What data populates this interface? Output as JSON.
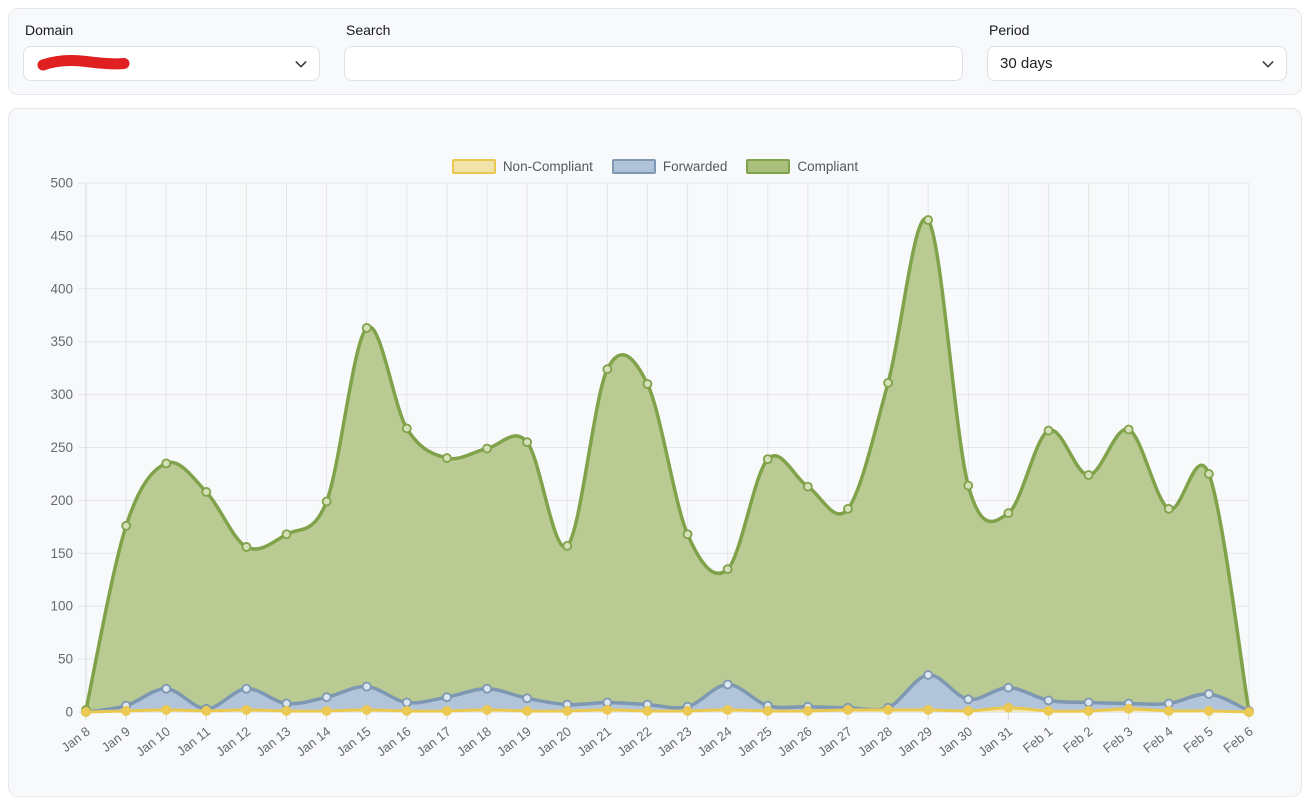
{
  "filters": {
    "domain": {
      "label": "Domain",
      "value": "",
      "redacted": true
    },
    "search": {
      "label": "Search",
      "value": "",
      "placeholder": ""
    },
    "period": {
      "label": "Period",
      "value": "30 days"
    }
  },
  "colors": {
    "redaction": "#e02020",
    "card_bg": "#f8f9fa",
    "grid": "#e4e6e9",
    "axis": "#d6d9dc",
    "tick_label": "#66696e"
  },
  "chart_data": {
    "type": "area",
    "title": "",
    "xlabel": "",
    "ylabel": "",
    "ylim": [
      0,
      500
    ],
    "ytick_step": 50,
    "grid": true,
    "legend_position": "top-center",
    "x": [
      "Jan 8",
      "Jan 9",
      "Jan 10",
      "Jan 11",
      "Jan 12",
      "Jan 13",
      "Jan 14",
      "Jan 15",
      "Jan 16",
      "Jan 17",
      "Jan 18",
      "Jan 19",
      "Jan 20",
      "Jan 21",
      "Jan 22",
      "Jan 23",
      "Jan 24",
      "Jan 25",
      "Jan 26",
      "Jan 27",
      "Jan 28",
      "Jan 29",
      "Jan 30",
      "Jan 31",
      "Feb 1",
      "Feb 2",
      "Feb 3",
      "Feb 4",
      "Feb 5",
      "Feb 6"
    ],
    "series": [
      {
        "name": "Non-Compliant",
        "line": "#e9c850",
        "fill": "#f4e8ba",
        "marker_fill": "#edca57",
        "swatch_fill": "#f2e3ab",
        "values": [
          0,
          1,
          2,
          1,
          2,
          1,
          1,
          2,
          1,
          1,
          2,
          1,
          1,
          2,
          1,
          1,
          2,
          1,
          1,
          2,
          2,
          2,
          1,
          4,
          1,
          1,
          3,
          1,
          1,
          0
        ]
      },
      {
        "name": "Forwarded",
        "line": "#7e97b2",
        "fill": "#b2c4da",
        "marker_fill": "#dde7f1",
        "swatch_fill": "#afc2d7",
        "values": [
          0,
          6,
          22,
          3,
          22,
          8,
          14,
          24,
          9,
          14,
          22,
          13,
          7,
          9,
          7,
          5,
          26,
          6,
          5,
          4,
          4,
          35,
          12,
          23,
          11,
          9,
          8,
          8,
          17,
          1
        ]
      },
      {
        "name": "Compliant",
        "line": "#7fa24a",
        "fill": "#b9cb92",
        "marker_fill": "#d5e0b8",
        "swatch_fill": "#aabf7c",
        "values": [
          2,
          176,
          235,
          208,
          156,
          168,
          199,
          363,
          268,
          240,
          249,
          255,
          157,
          324,
          310,
          168,
          135,
          239,
          213,
          192,
          311,
          465,
          214,
          188,
          266,
          224,
          267,
          192,
          225,
          0
        ]
      }
    ]
  }
}
